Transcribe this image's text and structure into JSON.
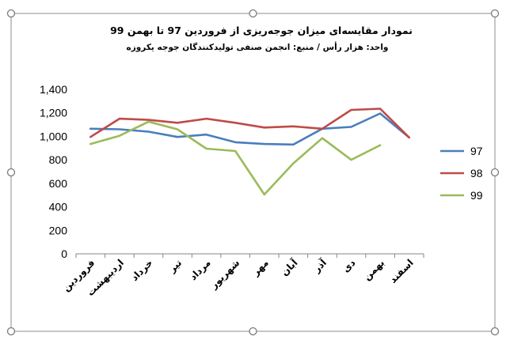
{
  "chart_data": {
    "type": "line",
    "title": "نمودار مقایسه‌ای میزان جوجه‌ریزی از فروردین 97 تا بهمن 99",
    "subtitle": "واحد: هزار رأس / منبع: انجمن صنفی تولیدکنندگان جوجه یکروزه",
    "categories": [
      "فروردین",
      "اردیبهشت",
      "خرداد",
      "تیر",
      "مرداد",
      "شهریور",
      "مهر",
      "آبان",
      "آذر",
      "دی",
      "بهمن",
      "اسفند"
    ],
    "ylim": [
      0,
      1400
    ],
    "yticks": [
      "0",
      "200",
      "400",
      "600",
      "800",
      "1,000",
      "1,200",
      "1,400"
    ],
    "grid": false,
    "legend_position": "right",
    "series": [
      {
        "name": "97",
        "color": "#4A7EBB",
        "values": [
          1065,
          1060,
          1040,
          995,
          1015,
          950,
          935,
          930,
          1065,
          1080,
          1195,
          990
        ]
      },
      {
        "name": "98",
        "color": "#BE4B48",
        "values": [
          995,
          1150,
          1140,
          1115,
          1150,
          1115,
          1075,
          1085,
          1065,
          1225,
          1235,
          990
        ]
      },
      {
        "name": "99",
        "color": "#9BBB59",
        "values": [
          935,
          1005,
          1125,
          1060,
          895,
          875,
          505,
          770,
          985,
          800,
          925,
          null
        ]
      }
    ]
  }
}
